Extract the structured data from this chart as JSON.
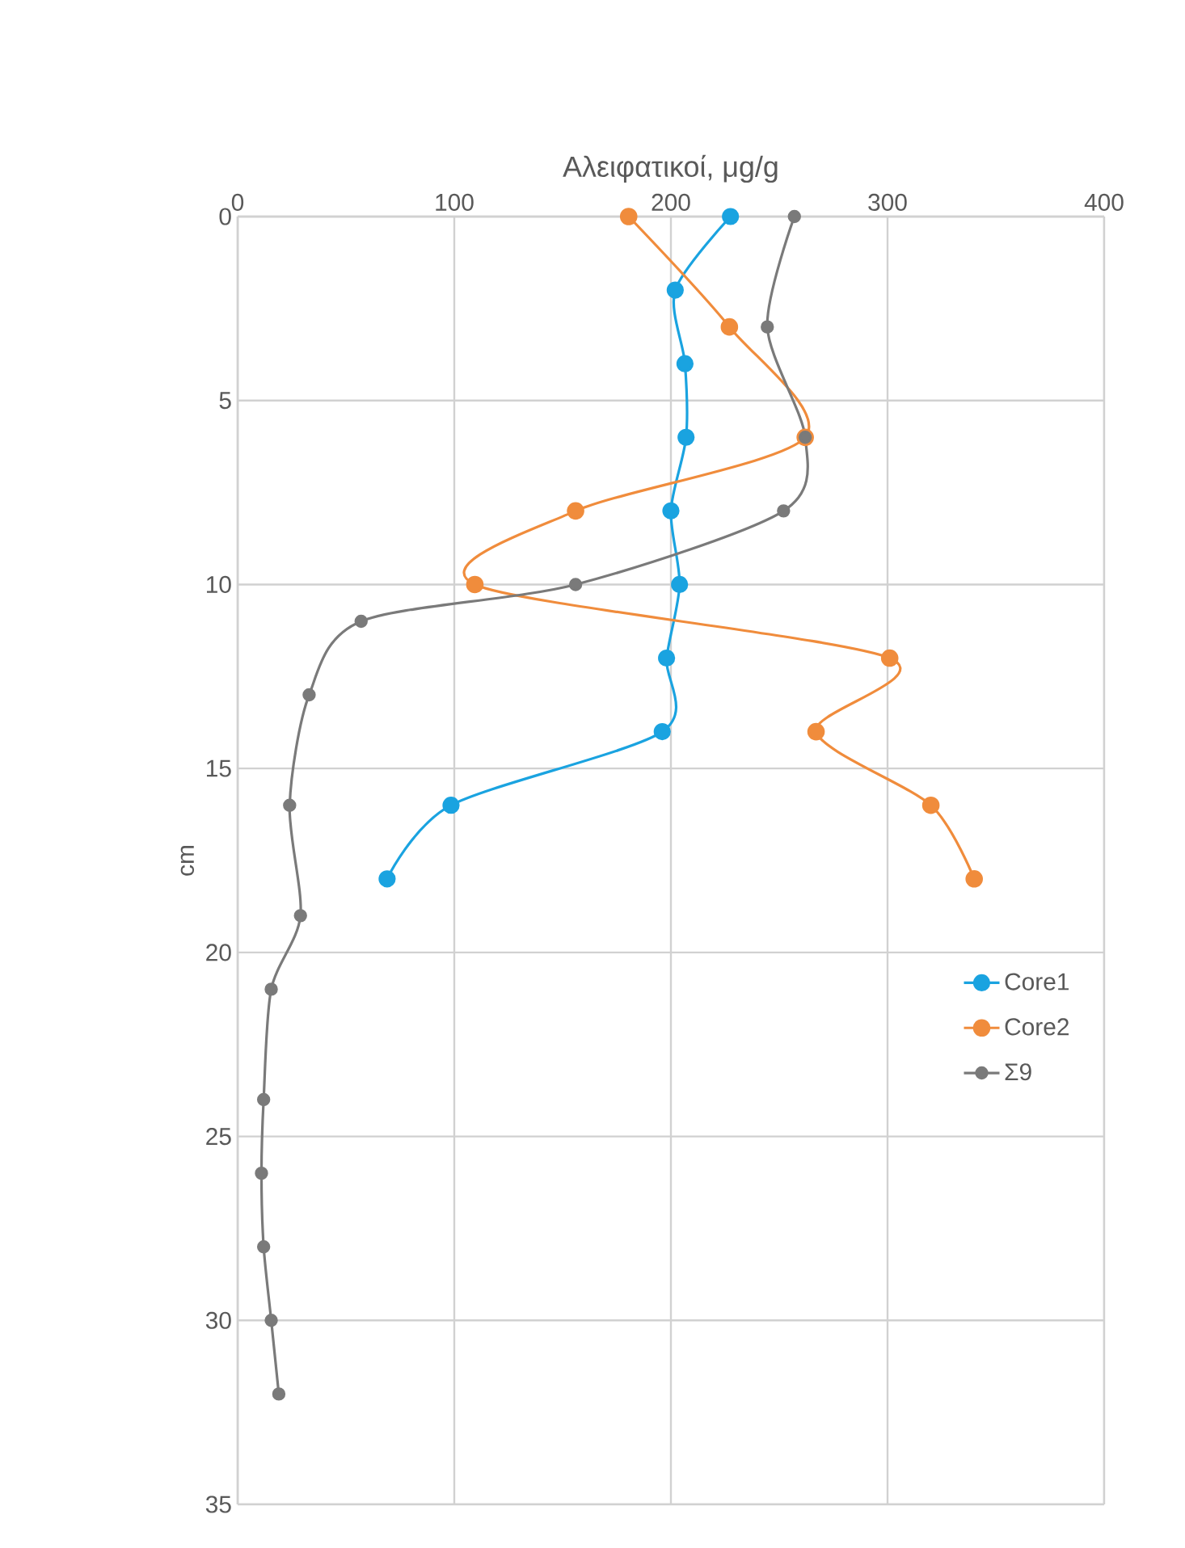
{
  "chart_data": {
    "type": "line",
    "xlabel": "Αλειφατικοί, μg/g",
    "ylabel": "cm",
    "series": [
      {
        "name": "Core1",
        "color": "#1aa3e0",
        "x": [
          227.5,
          202,
          206.5,
          207,
          200,
          204,
          198,
          196,
          98.5,
          69
        ],
        "values": [
          0,
          2,
          4,
          6,
          8,
          10,
          12,
          14,
          16,
          18
        ]
      },
      {
        "name": "Core2",
        "color": "#f08c3c",
        "x": [
          180.5,
          227,
          262,
          156,
          109.5,
          301,
          267,
          320,
          340
        ],
        "values": [
          0,
          3,
          6,
          8,
          10,
          12,
          14,
          16,
          18
        ]
      },
      {
        "name": "Σ9",
        "color": "#7a7a7a",
        "x": [
          257,
          244.5,
          262,
          252,
          156,
          57,
          33,
          24,
          29,
          15.5,
          12,
          11,
          12,
          15.5,
          19
        ],
        "values": [
          0,
          3,
          6,
          8,
          10,
          11,
          13,
          16,
          19,
          21,
          24,
          26,
          28,
          30,
          32
        ]
      }
    ],
    "xlim": [
      0,
      400
    ],
    "xticks": [
      0,
      100,
      200,
      300,
      400
    ],
    "ylim": [
      35,
      0
    ],
    "yticks": [
      0,
      5,
      10,
      15,
      20,
      25,
      30,
      35
    ],
    "grid": true,
    "legend": "right",
    "marker": "circle",
    "line_style": "solid"
  }
}
